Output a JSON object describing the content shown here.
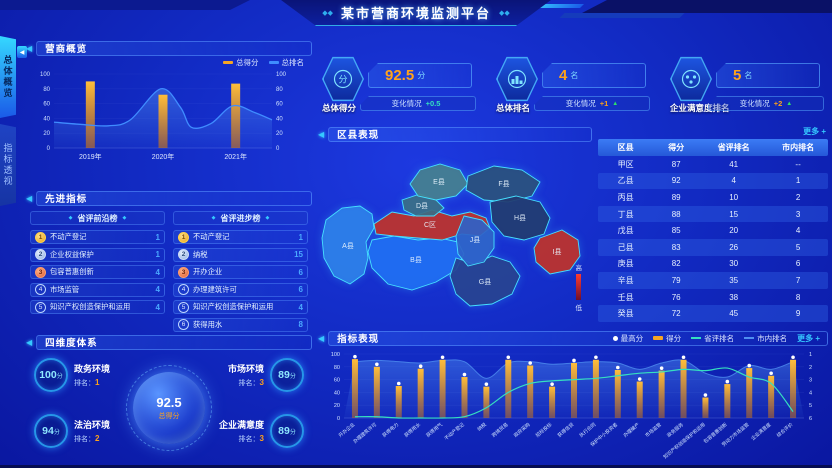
{
  "header": {
    "title": "某市营商环境监测平台"
  },
  "side_tabs": [
    {
      "label": "总体概览",
      "active": true
    },
    {
      "label": "指标透视",
      "active": false
    }
  ],
  "panels": {
    "overview": {
      "title": "营商概览"
    },
    "indicators": {
      "title": "先进指标",
      "left_list_title": "省评前沿榜",
      "right_list_title": "省评进步榜",
      "left_list": [
        {
          "rank": "1",
          "label": "不动产登记",
          "value": "1"
        },
        {
          "rank": "2",
          "label": "企业权益保护",
          "value": "1"
        },
        {
          "rank": "3",
          "label": "包容普惠创新",
          "value": "4"
        },
        {
          "rank": "4",
          "label": "市场监管",
          "value": "4"
        },
        {
          "rank": "5",
          "label": "知识产权创造保护和运用",
          "value": "4"
        }
      ],
      "right_list": [
        {
          "rank": "1",
          "label": "不动产登记",
          "value": "1"
        },
        {
          "rank": "2",
          "label": "纳税",
          "value": "15"
        },
        {
          "rank": "3",
          "label": "开办企业",
          "value": "6"
        },
        {
          "rank": "4",
          "label": "办理建筑许可",
          "value": "6"
        },
        {
          "rank": "5",
          "label": "知识产权创造保护和运用",
          "value": "4"
        },
        {
          "rank": "6",
          "label": "获得用水",
          "value": "8"
        }
      ]
    },
    "dimensions": {
      "title": "四维度体系",
      "center_value": "92.5",
      "center_label": "总得分",
      "items": [
        {
          "label": "政务环境",
          "value": "100",
          "unit": "分",
          "rank_label": "排名：",
          "rank": "1"
        },
        {
          "label": "市场环境",
          "value": "89",
          "unit": "分",
          "rank_label": "排名：",
          "rank": "3"
        },
        {
          "label": "法治环境",
          "value": "94",
          "unit": "分",
          "rank_label": "排名：",
          "rank": "2"
        },
        {
          "label": "企业满意度",
          "value": "89",
          "unit": "分",
          "rank_label": "排名：",
          "rank": "3"
        }
      ]
    },
    "district": {
      "title": "区县表现",
      "legend_high": "高",
      "legend_low": "低"
    },
    "indicator_perf": {
      "title": "指标表现",
      "more": "更多 +"
    }
  },
  "kpis": [
    {
      "label": "总体得分",
      "value": "92.5",
      "unit": "分",
      "change_label": "变化情况",
      "change": "+0.5",
      "arrow": "",
      "icon": "score-icon"
    },
    {
      "label": "总体排名",
      "value": "4",
      "unit": "名",
      "change_label": "变化情况",
      "change": "+1",
      "arrow": "▲",
      "icon": "ranking-icon"
    },
    {
      "label": "企业满意度排名",
      "value": "5",
      "unit": "名",
      "change_label": "变化情况",
      "change": "+2",
      "arrow": "▲",
      "icon": "satisfaction-icon"
    }
  ],
  "table": {
    "more": "更多 +",
    "headers": [
      "区县",
      "得分",
      "省评排名",
      "市内排名"
    ],
    "rows": [
      [
        "甲区",
        "87",
        "41",
        "--"
      ],
      [
        "乙县",
        "92",
        "4",
        "1"
      ],
      [
        "丙县",
        "89",
        "10",
        "2"
      ],
      [
        "丁县",
        "88",
        "15",
        "3"
      ],
      [
        "戊县",
        "85",
        "20",
        "4"
      ],
      [
        "己县",
        "83",
        "26",
        "5"
      ],
      [
        "庚县",
        "82",
        "30",
        "6"
      ],
      [
        "辛县",
        "79",
        "35",
        "7"
      ],
      [
        "壬县",
        "76",
        "38",
        "8"
      ],
      [
        "癸县",
        "72",
        "45",
        "9"
      ]
    ]
  },
  "map": {
    "regions": [
      {
        "name": "A县",
        "color": "#2e7fe8"
      },
      {
        "name": "B县",
        "color": "#1f6cf2"
      },
      {
        "name": "C区",
        "color": "#c03028"
      },
      {
        "name": "D县",
        "color": "#3b6e85"
      },
      {
        "name": "E县",
        "color": "#477f8e"
      },
      {
        "name": "F县",
        "color": "#2a4f7c"
      },
      {
        "name": "G县",
        "color": "#27418f"
      },
      {
        "name": "H县",
        "color": "#22396f"
      },
      {
        "name": "I县",
        "color": "#c03028"
      },
      {
        "name": "J县",
        "color": "#2f63c8"
      }
    ]
  },
  "colors": {
    "accent_cyan": "#35c8ff",
    "accent_orange": "#f5a623",
    "up_green": "#2be06a",
    "line_teal": "#35e0c0",
    "line_blue": "#4f8ef0",
    "table_header_bg": "#2e6cf0",
    "red_region": "#c03028"
  },
  "chart_data": [
    {
      "type": "bar",
      "title": "营商概览",
      "categories": [
        "2019年",
        "2020年",
        "2021年"
      ],
      "series": [
        {
          "name": "总得分",
          "type": "bar",
          "color": "#f5a623",
          "values": [
            90,
            72,
            87
          ]
        },
        {
          "name": "总排名",
          "type": "line",
          "color": "#3f8cff",
          "curve_points": [
            [
              0,
              35
            ],
            [
              0.12,
              32
            ],
            [
              0.25,
              30
            ],
            [
              0.35,
              38
            ],
            [
              0.49,
              80
            ],
            [
              0.58,
              55
            ],
            [
              0.63,
              28
            ],
            [
              0.72,
              33
            ],
            [
              0.82,
              57
            ],
            [
              0.92,
              48
            ],
            [
              1,
              38
            ]
          ]
        }
      ],
      "ylim": [
        0,
        100
      ],
      "yticks": [
        0,
        20,
        40,
        60,
        80,
        100
      ],
      "legend_position": "top-right",
      "grid": false
    },
    {
      "type": "bar",
      "title": "指标表现",
      "categories": [
        "开办企业",
        "办理建筑许可",
        "获得电力",
        "获得用水",
        "获得用气",
        "不动产登记",
        "纳税",
        "跨境贸易",
        "政府采购",
        "招标投标",
        "获得信贷",
        "执行合同",
        "保护中小投资者",
        "办理破产",
        "市场监管",
        "政务服务",
        "知识产权创造保护和运用",
        "包容普惠创新",
        "劳动力市场监管",
        "企业满意度",
        "综合评价"
      ],
      "series": [
        {
          "name": "最高分",
          "type": "scatter",
          "color": "#ffffff",
          "values": [
            92,
            80,
            50,
            77,
            91,
            64,
            49,
            91,
            82,
            49,
            86,
            91,
            75,
            57,
            74,
            91,
            32,
            53,
            78,
            66,
            91
          ]
        },
        {
          "name": "得分",
          "type": "bar",
          "color": "#f5a623",
          "values": [
            92,
            80,
            50,
            77,
            91,
            64,
            49,
            91,
            82,
            49,
            86,
            91,
            75,
            57,
            74,
            91,
            32,
            53,
            78,
            66,
            91
          ]
        },
        {
          "name": "省评排名",
          "type": "line",
          "axis": "right",
          "color": "#35e0c0",
          "values": [
            5.9,
            5.9,
            6,
            6,
            6,
            5.9,
            5.2,
            4,
            3.3,
            3.1,
            3,
            2.9,
            2.7,
            2.5,
            2.4,
            2.2,
            2.3,
            2.1,
            2.8,
            3.3,
            5.5
          ]
        },
        {
          "name": "市内排名",
          "type": "area",
          "axis": "right",
          "color": "#4f8ef0",
          "values": [
            1.6,
            1.5,
            1.6,
            1.7,
            1.5,
            1.6,
            2.9,
            1.7,
            1.6,
            1.8,
            1.7,
            1.6,
            1.7,
            2.2,
            1.7,
            1.5,
            2.5,
            2.8,
            1.9,
            2.2,
            1.6
          ]
        }
      ],
      "ylim": [
        0,
        100
      ],
      "ylim_right": [
        1,
        6
      ],
      "yticks_left": [
        0,
        20,
        40,
        60,
        80,
        100
      ],
      "yticks_right": [
        1,
        2,
        3,
        4,
        5,
        6
      ],
      "legend_position": "top-right",
      "grid": true
    }
  ]
}
